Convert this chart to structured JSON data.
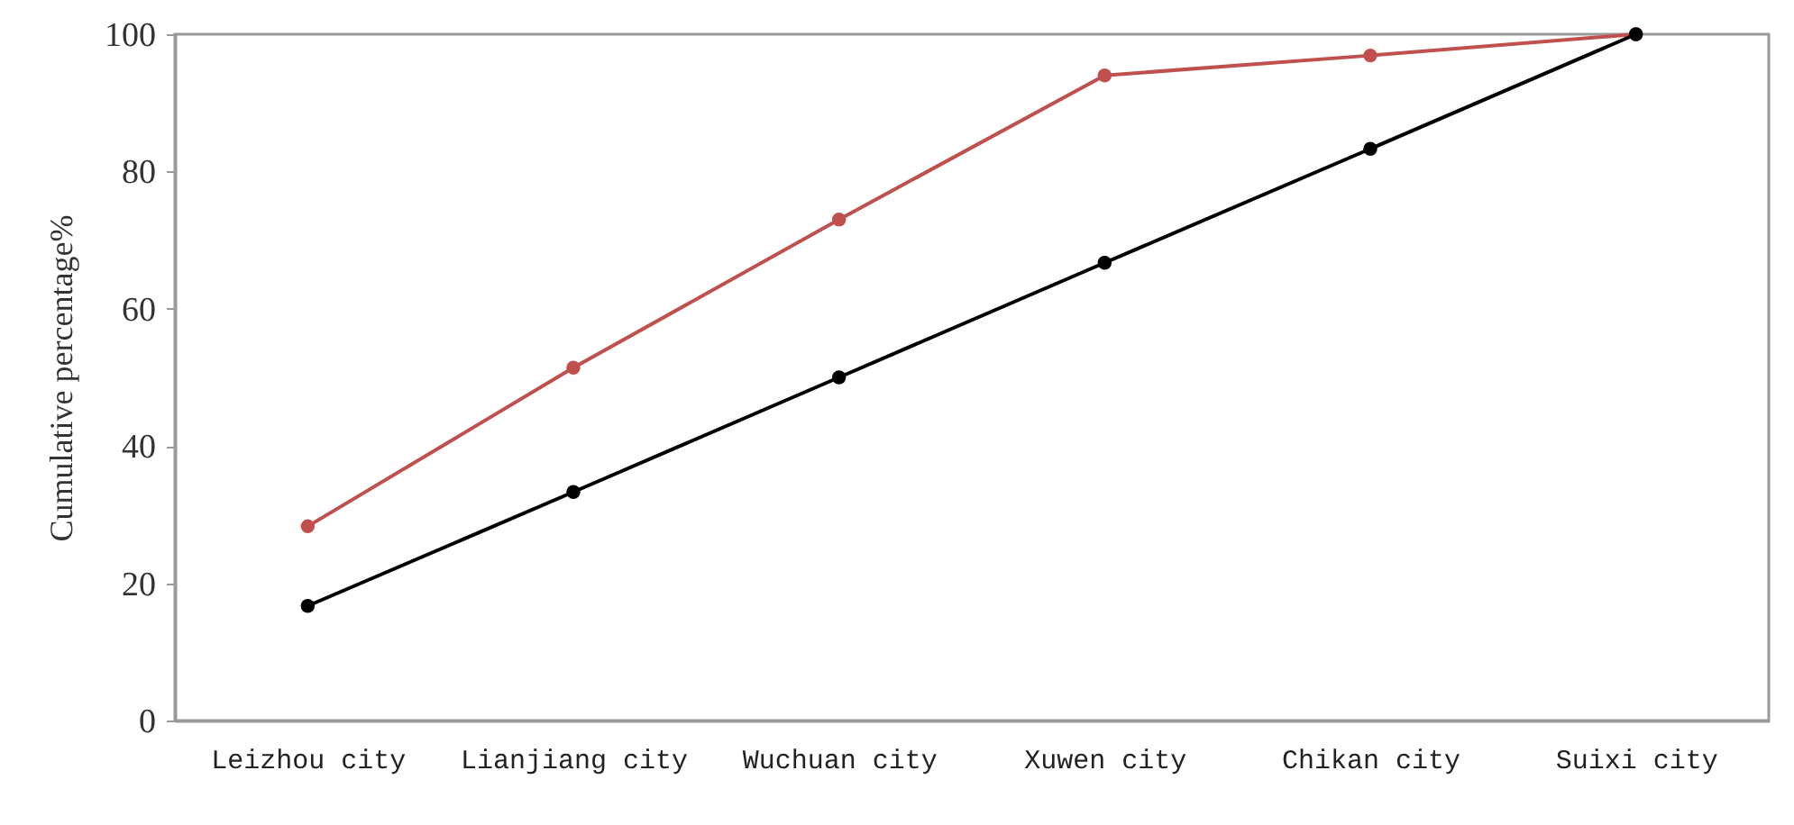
{
  "chart_data": {
    "type": "line",
    "ylabel": "Cumulative percentage%",
    "categories": [
      "Leizhou city",
      "Lianjiang city",
      "Wuchuan city",
      "Xuwen city",
      "Chikan city",
      "Suixi city"
    ],
    "series": [
      {
        "color": "#c0504d",
        "values": [
          28.3,
          51.4,
          73,
          94,
          96.9,
          100
        ]
      },
      {
        "color": "#000000",
        "values": [
          16.7,
          33.3,
          50,
          66.7,
          83.3,
          100
        ]
      }
    ],
    "ylim": [
      0,
      100
    ],
    "yticks": [
      0,
      20,
      40,
      60,
      80,
      100
    ],
    "marker": "circle",
    "line_style": "solid"
  }
}
